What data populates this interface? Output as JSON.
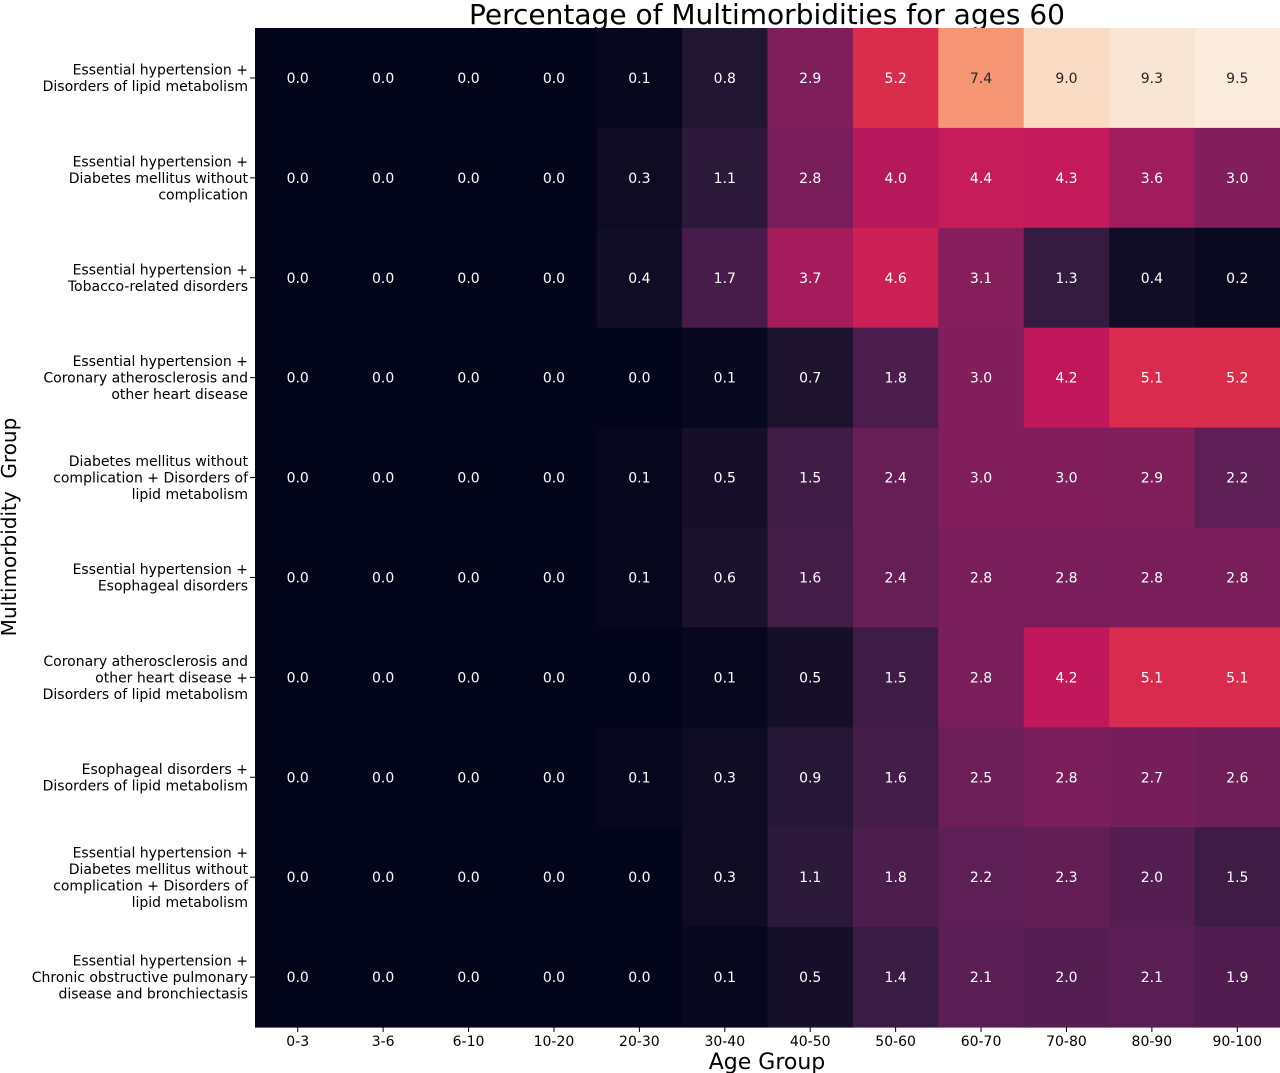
{
  "chart_data": {
    "type": "heatmap",
    "title": "Percentage of Multimorbidities for ages 60",
    "xlabel": "Age Group",
    "ylabel": "Multimorbidity  Group",
    "x_categories": [
      "0-3",
      "3-6",
      "6-10",
      "10-20",
      "20-30",
      "30-40",
      "40-50",
      "50-60",
      "60-70",
      "70-80",
      "80-90",
      "90-100"
    ],
    "y_categories": [
      [
        "Essential hypertension +",
        "Disorders of lipid metabolism"
      ],
      [
        "Essential hypertension +",
        "Diabetes mellitus without",
        "complication"
      ],
      [
        "Essential hypertension +",
        "Tobacco-related disorders"
      ],
      [
        "Essential hypertension +",
        "Coronary atherosclerosis and",
        "other heart disease"
      ],
      [
        "Diabetes mellitus without",
        "complication + Disorders of",
        "lipid metabolism"
      ],
      [
        "Essential hypertension +",
        "Esophageal disorders"
      ],
      [
        "Coronary atherosclerosis and",
        "other heart disease +",
        "Disorders of lipid metabolism"
      ],
      [
        "Esophageal disorders +",
        "Disorders of lipid metabolism"
      ],
      [
        "Essential hypertension +",
        "Diabetes mellitus without",
        "complication + Disorders of",
        "lipid metabolism"
      ],
      [
        "Essential hypertension +",
        "Chronic obstructive pulmonary",
        "disease and bronchiectasis"
      ]
    ],
    "values": [
      [
        0.0,
        0.0,
        0.0,
        0.0,
        0.1,
        0.8,
        2.9,
        5.2,
        7.4,
        9.0,
        9.3,
        9.5
      ],
      [
        0.0,
        0.0,
        0.0,
        0.0,
        0.3,
        1.1,
        2.8,
        4.0,
        4.4,
        4.3,
        3.6,
        3.0
      ],
      [
        0.0,
        0.0,
        0.0,
        0.0,
        0.4,
        1.7,
        3.7,
        4.6,
        3.1,
        1.3,
        0.4,
        0.2
      ],
      [
        0.0,
        0.0,
        0.0,
        0.0,
        0.0,
        0.1,
        0.7,
        1.8,
        3.0,
        4.2,
        5.1,
        5.2
      ],
      [
        0.0,
        0.0,
        0.0,
        0.0,
        0.1,
        0.5,
        1.5,
        2.4,
        3.0,
        3.0,
        2.9,
        2.2
      ],
      [
        0.0,
        0.0,
        0.0,
        0.0,
        0.1,
        0.6,
        1.6,
        2.4,
        2.8,
        2.8,
        2.8,
        2.8
      ],
      [
        0.0,
        0.0,
        0.0,
        0.0,
        0.0,
        0.1,
        0.5,
        1.5,
        2.8,
        4.2,
        5.1,
        5.1
      ],
      [
        0.0,
        0.0,
        0.0,
        0.0,
        0.1,
        0.3,
        0.9,
        1.6,
        2.5,
        2.8,
        2.7,
        2.6
      ],
      [
        0.0,
        0.0,
        0.0,
        0.0,
        0.0,
        0.3,
        1.1,
        1.8,
        2.2,
        2.3,
        2.0,
        1.5
      ],
      [
        0.0,
        0.0,
        0.0,
        0.0,
        0.0,
        0.1,
        0.5,
        1.4,
        2.1,
        2.0,
        2.1,
        1.9
      ]
    ],
    "value_range": [
      0.0,
      9.5
    ],
    "colormap": "rocket",
    "colormap_stops": [
      "#03051a",
      "#2b1a3a",
      "#5a1e55",
      "#8a1e5c",
      "#c2185b",
      "#dc2f4a",
      "#f06042",
      "#f69472",
      "#f7c9a8",
      "#faebdd"
    ],
    "light_text_color": "#ffffff",
    "dark_text_color": "#262626",
    "grid": false,
    "legend": "none"
  }
}
